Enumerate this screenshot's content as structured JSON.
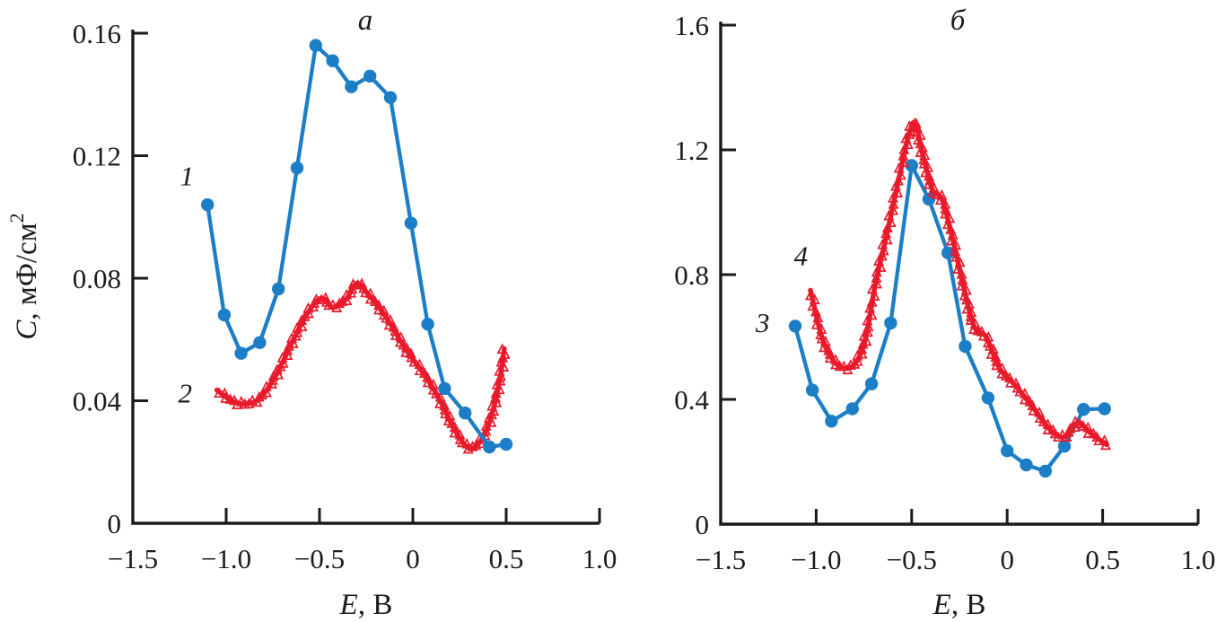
{
  "figure": {
    "background": "#ffffff",
    "colors": {
      "blue": "#1b7ec6",
      "red": "#e81a2b",
      "axis": "#1b1b1b"
    }
  },
  "chart_data": [
    {
      "type": "line",
      "panel": "left",
      "title": "а",
      "xlabel_parts": [
        "E",
        ", В"
      ],
      "ylabel_parts": [
        "C",
        ", мФ/см",
        "2"
      ],
      "xlim": [
        -1.5,
        1.0
      ],
      "ylim": [
        0,
        0.16
      ],
      "xticks": [
        -1.5,
        -1.0,
        -0.5,
        0,
        0.5,
        1.0
      ],
      "xtick_labels": [
        "−1.5",
        "−1.0",
        "−0.5",
        "0",
        "0.5",
        "1.0"
      ],
      "yticks": [
        0,
        0.04,
        0.08,
        0.12,
        0.16
      ],
      "ytick_labels": [
        "0",
        "0.04",
        "0.08",
        "0.12",
        "0.16"
      ],
      "grid": false,
      "legend": "none",
      "series": [
        {
          "name": "1",
          "color": "blue",
          "marker": "circle",
          "label_pos": [
            -1.21,
            0.1135
          ],
          "points": [
            [
              -1.1,
              0.104
            ],
            [
              -1.01,
              0.068
            ],
            [
              -0.92,
              0.0555
            ],
            [
              -0.82,
              0.059
            ],
            [
              -0.72,
              0.0765
            ],
            [
              -0.62,
              0.116
            ],
            [
              -0.52,
              0.156
            ],
            [
              -0.43,
              0.151
            ],
            [
              -0.33,
              0.1425
            ],
            [
              -0.23,
              0.146
            ],
            [
              -0.12,
              0.139
            ],
            [
              -0.01,
              0.098
            ],
            [
              0.08,
              0.065
            ],
            [
              0.17,
              0.044
            ],
            [
              0.28,
              0.036
            ],
            [
              0.41,
              0.0249
            ],
            [
              0.5,
              0.0258
            ]
          ]
        },
        {
          "name": "2",
          "color": "red",
          "marker": "triangle",
          "label_pos": [
            -1.22,
            0.0426
          ],
          "points": [
            [
              -1.05,
              0.0435
            ],
            [
              -0.97,
              0.04
            ],
            [
              -0.9,
              0.039
            ],
            [
              -0.82,
              0.0408
            ],
            [
              -0.73,
              0.0487
            ],
            [
              -0.64,
              0.06
            ],
            [
              -0.56,
              0.069
            ],
            [
              -0.49,
              0.0735
            ],
            [
              -0.43,
              0.0706
            ],
            [
              -0.36,
              0.073
            ],
            [
              -0.3,
              0.0783
            ],
            [
              -0.24,
              0.0748
            ],
            [
              -0.14,
              0.067
            ],
            [
              -0.04,
              0.057
            ],
            [
              0.06,
              0.0487
            ],
            [
              0.14,
              0.0408
            ],
            [
              0.22,
              0.031
            ],
            [
              0.29,
              0.025
            ],
            [
              0.35,
              0.0258
            ],
            [
              0.41,
              0.033
            ],
            [
              0.46,
              0.045
            ],
            [
              0.49,
              0.057
            ]
          ]
        }
      ]
    },
    {
      "type": "line",
      "panel": "right",
      "title": "б",
      "xlabel_parts": [
        "E",
        ", В"
      ],
      "ylabel_parts": [],
      "xlim": [
        -1.5,
        1.0
      ],
      "ylim": [
        0,
        1.6
      ],
      "xticks": [
        -1.5,
        -1.0,
        -0.5,
        0,
        0.5,
        1.0
      ],
      "xtick_labels": [
        "−1.5",
        "−1.0",
        "−0.5",
        "0",
        "0.5",
        "1.0"
      ],
      "yticks": [
        0,
        0.4,
        0.8,
        1.2,
        1.6
      ],
      "ytick_labels": [
        "0",
        "0.4",
        "0.8",
        "1.2",
        "1.6"
      ],
      "grid": false,
      "legend": "none",
      "series": [
        {
          "name": "3",
          "color": "blue",
          "marker": "circle",
          "label_pos": [
            -1.28,
            0.648
          ],
          "points": [
            [
              -1.11,
              0.635
            ],
            [
              -1.02,
              0.43
            ],
            [
              -0.92,
              0.33
            ],
            [
              -0.81,
              0.37
            ],
            [
              -0.71,
              0.45
            ],
            [
              -0.61,
              0.645
            ],
            [
              -0.5,
              1.15
            ],
            [
              -0.41,
              1.042
            ],
            [
              -0.31,
              0.87
            ],
            [
              -0.22,
              0.57
            ],
            [
              -0.1,
              0.405
            ],
            [
              0.0,
              0.235
            ],
            [
              0.1,
              0.19
            ],
            [
              0.2,
              0.17
            ],
            [
              0.3,
              0.25
            ],
            [
              0.4,
              0.368
            ],
            [
              0.51,
              0.37
            ]
          ]
        },
        {
          "name": "4",
          "color": "red",
          "marker": "triangle",
          "label_pos": [
            -1.08,
            0.862
          ],
          "points": [
            [
              -1.03,
              0.75
            ],
            [
              -0.97,
              0.6
            ],
            [
              -0.91,
              0.525
            ],
            [
              -0.85,
              0.5
            ],
            [
              -0.79,
              0.52
            ],
            [
              -0.74,
              0.6
            ],
            [
              -0.69,
              0.77
            ],
            [
              -0.63,
              0.93
            ],
            [
              -0.57,
              1.1
            ],
            [
              -0.51,
              1.26
            ],
            [
              -0.48,
              1.28
            ],
            [
              -0.44,
              1.18
            ],
            [
              -0.39,
              1.07
            ],
            [
              -0.34,
              1.04
            ],
            [
              -0.28,
              0.9
            ],
            [
              -0.22,
              0.74
            ],
            [
              -0.17,
              0.63
            ],
            [
              -0.11,
              0.6
            ],
            [
              -0.04,
              0.5
            ],
            [
              0.05,
              0.44
            ],
            [
              0.14,
              0.37
            ],
            [
              0.23,
              0.3
            ],
            [
              0.3,
              0.28
            ],
            [
              0.37,
              0.325
            ],
            [
              0.44,
              0.29
            ],
            [
              0.52,
              0.255
            ]
          ]
        }
      ]
    }
  ]
}
